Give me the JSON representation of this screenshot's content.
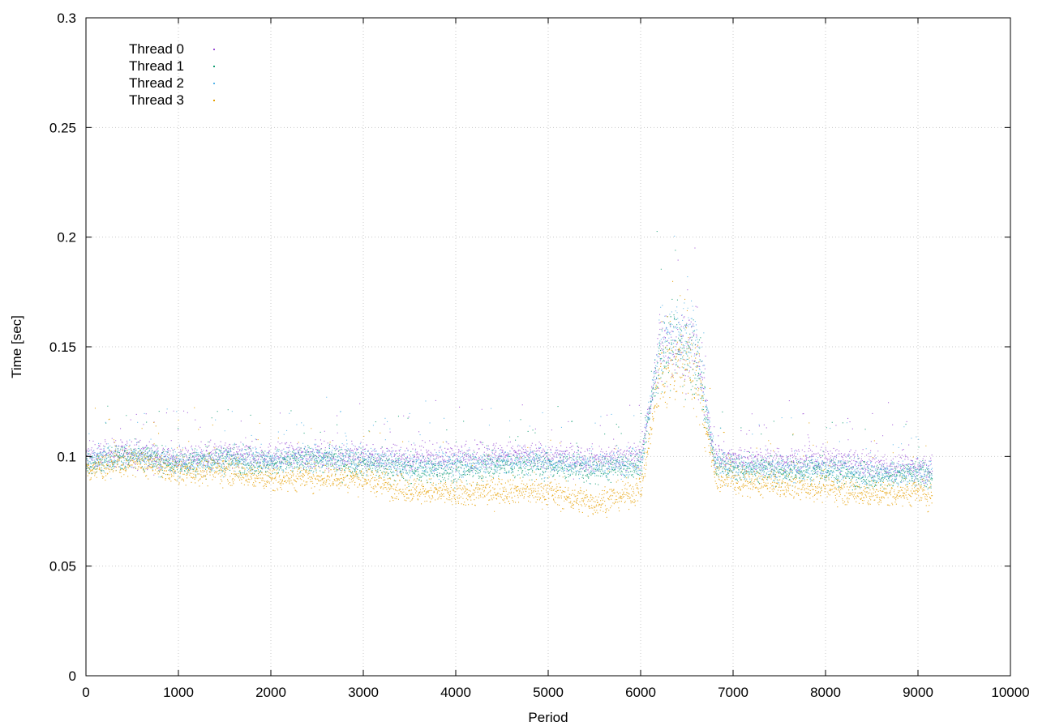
{
  "chart_data": {
    "type": "scatter",
    "title": "",
    "xlabel": "Period",
    "ylabel": "Time [sec]",
    "xlim": [
      0,
      10000
    ],
    "ylim": [
      0,
      0.3
    ],
    "x_ticks": [
      "0",
      "1000",
      "2000",
      "3000",
      "4000",
      "5000",
      "6000",
      "7000",
      "8000",
      "9000",
      "10000"
    ],
    "y_ticks": [
      "0",
      "0.05",
      "0.1",
      "0.15",
      "0.2",
      "0.25",
      "0.3"
    ],
    "grid": true,
    "legend_position": "top-left",
    "x_range_of_data": [
      0,
      9150
    ],
    "series": [
      {
        "name": "Thread 0",
        "color": "#9b4fd6",
        "x": [
          0,
          500,
          1000,
          1500,
          2000,
          2500,
          3000,
          3500,
          4000,
          4500,
          5000,
          5500,
          6000,
          6200,
          6400,
          6600,
          6800,
          7000,
          7500,
          8000,
          8500,
          9000,
          9150
        ],
        "y": [
          0.1,
          0.102,
          0.099,
          0.101,
          0.1,
          0.101,
          0.1,
          0.099,
          0.1,
          0.101,
          0.1,
          0.099,
          0.1,
          0.15,
          0.152,
          0.15,
          0.1,
          0.099,
          0.098,
          0.099,
          0.096,
          0.095,
          0.094
        ]
      },
      {
        "name": "Thread 1",
        "color": "#139e73",
        "x": [
          0,
          500,
          1000,
          1500,
          2000,
          2500,
          3000,
          3500,
          4000,
          4500,
          5000,
          5500,
          6000,
          6200,
          6400,
          6600,
          6800,
          7000,
          7500,
          8000,
          8500,
          9000,
          9150
        ],
        "y": [
          0.097,
          0.101,
          0.097,
          0.099,
          0.097,
          0.099,
          0.097,
          0.094,
          0.094,
          0.096,
          0.096,
          0.094,
          0.096,
          0.148,
          0.15,
          0.146,
          0.097,
          0.095,
          0.094,
          0.094,
          0.091,
          0.092,
          0.091
        ]
      },
      {
        "name": "Thread 2",
        "color": "#56b4e9",
        "x": [
          0,
          500,
          1000,
          1500,
          2000,
          2500,
          3000,
          3500,
          4000,
          4500,
          5000,
          5500,
          6000,
          6200,
          6400,
          6600,
          6800,
          7000,
          7500,
          8000,
          8500,
          9000,
          9150
        ],
        "y": [
          0.098,
          0.101,
          0.097,
          0.099,
          0.098,
          0.1,
          0.099,
          0.096,
          0.097,
          0.098,
          0.098,
          0.096,
          0.098,
          0.152,
          0.155,
          0.152,
          0.097,
          0.096,
          0.094,
          0.095,
          0.092,
          0.093,
          0.092
        ]
      },
      {
        "name": "Thread 3",
        "color": "#e69f00",
        "x": [
          0,
          500,
          1000,
          1500,
          2000,
          2500,
          3000,
          3500,
          4000,
          4500,
          5000,
          5500,
          6000,
          6200,
          6400,
          6600,
          6800,
          7000,
          7500,
          8000,
          8500,
          9000,
          9150
        ],
        "y": [
          0.094,
          0.098,
          0.093,
          0.094,
          0.09,
          0.091,
          0.09,
          0.085,
          0.083,
          0.085,
          0.084,
          0.079,
          0.085,
          0.135,
          0.142,
          0.138,
          0.091,
          0.089,
          0.087,
          0.086,
          0.083,
          0.084,
          0.082
        ]
      }
    ]
  }
}
